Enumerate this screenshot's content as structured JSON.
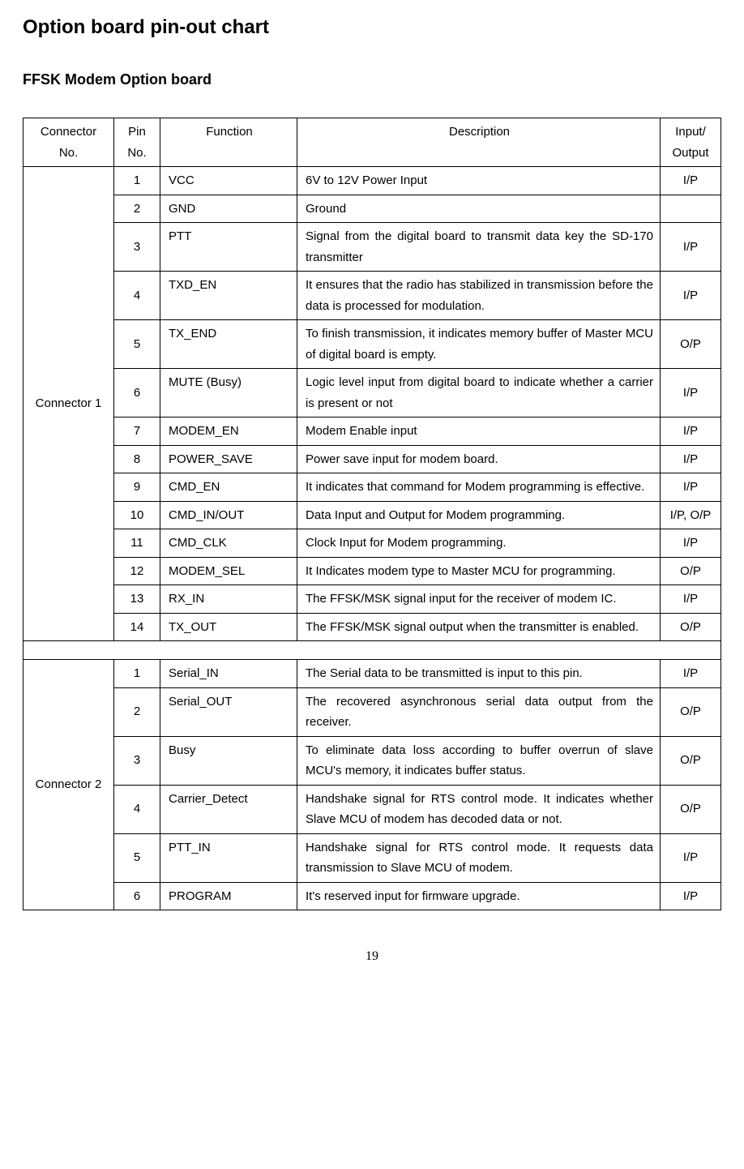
{
  "title": "Option board pin-out chart",
  "subtitle": "FFSK Modem Option board",
  "headers": {
    "connector": "Connector No.",
    "pin": "Pin No.",
    "function": "Function",
    "description": "Description",
    "io": "Input/ Output"
  },
  "connectors": [
    {
      "name": "Connector 1",
      "rows": [
        {
          "pin": "1",
          "func": "VCC",
          "desc": "6V to 12V Power Input",
          "io": "I/P"
        },
        {
          "pin": "2",
          "func": "GND",
          "desc": "Ground",
          "io": ""
        },
        {
          "pin": "3",
          "func": "PTT",
          "desc": "Signal from the digital board to transmit data key the SD-170 transmitter",
          "io": "I/P"
        },
        {
          "pin": "4",
          "func": "TXD_EN",
          "desc": "It ensures that the radio has stabilized in transmission before the data is processed for modulation.",
          "io": "I/P"
        },
        {
          "pin": "5",
          "func": "TX_END",
          "desc": "To finish transmission, it indicates memory buffer of Master MCU of digital board is empty.",
          "io": "O/P"
        },
        {
          "pin": "6",
          "func": "MUTE (Busy)",
          "desc": "Logic level input from digital board to indicate whether a carrier is present or not",
          "io": "I/P"
        },
        {
          "pin": "7",
          "func": "MODEM_EN",
          "desc": "Modem Enable input",
          "io": "I/P"
        },
        {
          "pin": "8",
          "func": "POWER_SAVE",
          "desc": "Power save input for modem board.",
          "io": "I/P"
        },
        {
          "pin": "9",
          "func": "CMD_EN",
          "desc": "It indicates that command for Modem programming is effective.",
          "io": "I/P"
        },
        {
          "pin": "10",
          "func": "CMD_IN/OUT",
          "desc": "Data Input and Output for Modem programming.",
          "io": "I/P, O/P"
        },
        {
          "pin": "11",
          "func": "CMD_CLK",
          "desc": "Clock Input for Modem programming.",
          "io": "I/P"
        },
        {
          "pin": "12",
          "func": "MODEM_SEL",
          "desc": "It Indicates modem type to Master MCU for programming.",
          "io": "O/P"
        },
        {
          "pin": "13",
          "func": "RX_IN",
          "desc": "The FFSK/MSK signal input for the receiver of modem IC.",
          "io": "I/P"
        },
        {
          "pin": "14",
          "func": "TX_OUT",
          "desc": "The FFSK/MSK signal output when the transmitter is enabled.",
          "io": "O/P"
        }
      ]
    },
    {
      "name": "Connector 2",
      "rows": [
        {
          "pin": "1",
          "func": "Serial_IN",
          "desc": "The Serial data to be transmitted is input to this pin.",
          "io": "I/P"
        },
        {
          "pin": "2",
          "func": "Serial_OUT",
          "desc": "The recovered asynchronous serial data output from the receiver.",
          "io": "O/P"
        },
        {
          "pin": "3",
          "func": "Busy",
          "desc": "To eliminate data loss according to buffer overrun of slave MCU's memory, it indicates buffer status.",
          "io": "O/P"
        },
        {
          "pin": "4",
          "func": "Carrier_Detect",
          "desc": "Handshake signal for RTS control mode. It indicates whether Slave MCU of modem has decoded data or not.",
          "io": "O/P"
        },
        {
          "pin": "5",
          "func": "PTT_IN",
          "desc": "Handshake signal for RTS control mode. It requests data transmission to Slave MCU of modem.",
          "io": "I/P"
        },
        {
          "pin": "6",
          "func": "PROGRAM",
          "desc": "It's reserved input for firmware upgrade.",
          "io": "I/P"
        }
      ]
    }
  ],
  "page_number": "19",
  "style": {
    "font_family": "Arial, Helvetica, sans-serif",
    "title_fontsize": 24,
    "subtitle_fontsize": 18,
    "body_fontsize": 15,
    "border_color": "#000000",
    "background_color": "#ffffff",
    "text_color": "#000000"
  }
}
